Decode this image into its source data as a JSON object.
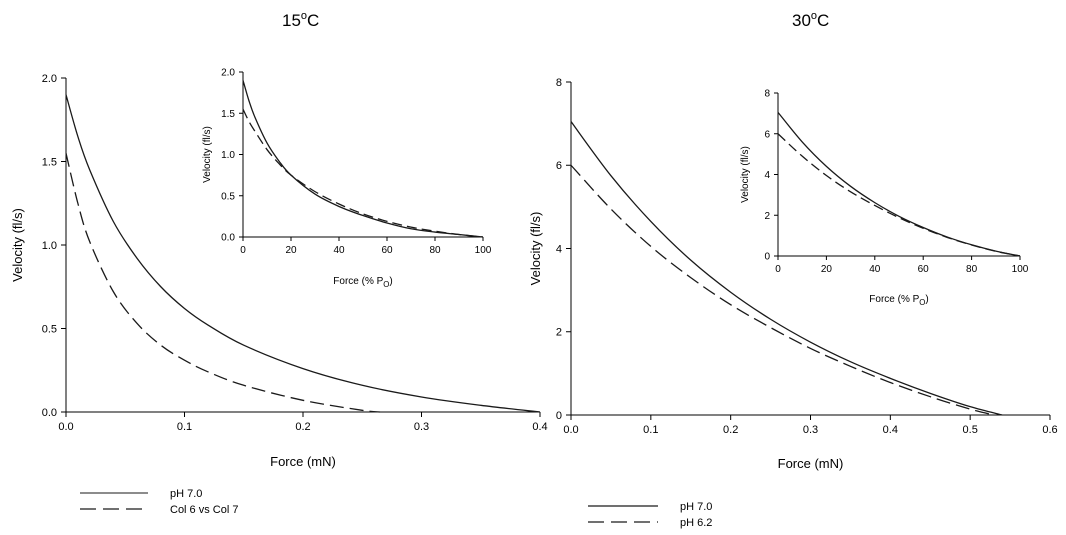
{
  "figure": {
    "panels": [
      {
        "title": "15°C",
        "title_main": "15",
        "title_sup": "o",
        "title_tail": "C",
        "legend": [
          "pH 7.0",
          "Col 6 vs Col 7"
        ]
      },
      {
        "title": "30°C",
        "title_main": "30",
        "title_sup": "o",
        "title_tail": "C",
        "legend": [
          "pH 7.0",
          "pH 6.2"
        ]
      }
    ],
    "colors": {
      "solid": "#1a1a1a",
      "dashed": "#1a1a1a",
      "legend_solid_left": "#8c8c8c"
    }
  },
  "chart_data": [
    {
      "type": "line",
      "title": "15°C",
      "xlabel": "Force (mN)",
      "ylabel": "Velocity (fl/s)",
      "xlim": [
        0,
        0.4
      ],
      "ylim": [
        0,
        2.0
      ],
      "xticks": [
        0.0,
        0.1,
        0.2,
        0.3,
        0.4
      ],
      "xtick_labels": [
        "0.0",
        "0.1",
        "0.2",
        "0.3",
        "0.4"
      ],
      "yticks": [
        0.0,
        0.5,
        1.0,
        1.5,
        2.0
      ],
      "ytick_labels": [
        "0.0",
        "0.5",
        "1.0",
        "1.5",
        "2.0"
      ],
      "grid": false,
      "legend": "bottom",
      "series": [
        {
          "name": "pH 7.0",
          "style": "solid",
          "x": [
            0,
            0.01,
            0.02,
            0.04,
            0.06,
            0.08,
            0.1,
            0.12,
            0.15,
            0.2,
            0.25,
            0.3,
            0.35,
            0.4
          ],
          "y": [
            1.9,
            1.65,
            1.45,
            1.14,
            0.92,
            0.75,
            0.62,
            0.52,
            0.4,
            0.26,
            0.16,
            0.09,
            0.04,
            0.0
          ]
        },
        {
          "name": "Col 6 vs Col 7",
          "style": "dashed",
          "x": [
            0,
            0.01,
            0.02,
            0.04,
            0.06,
            0.08,
            0.1,
            0.12,
            0.15,
            0.2,
            0.25,
            0.265
          ],
          "y": [
            1.55,
            1.25,
            1.02,
            0.72,
            0.53,
            0.4,
            0.31,
            0.24,
            0.16,
            0.07,
            0.01,
            0.0
          ]
        }
      ]
    },
    {
      "type": "line",
      "title": "",
      "xlabel": "Force (% P",
      "xlabel_sub": "O",
      "xlabel_tail": ")",
      "ylabel": "Velocity (fl/s)",
      "xlim": [
        0,
        100
      ],
      "ylim": [
        0,
        2.0
      ],
      "xticks": [
        0,
        20,
        40,
        60,
        80,
        100
      ],
      "xtick_labels": [
        "0",
        "20",
        "40",
        "60",
        "80",
        "100"
      ],
      "yticks": [
        0.0,
        0.5,
        1.0,
        1.5,
        2.0
      ],
      "ytick_labels": [
        "0.0",
        "0.5",
        "1.0",
        "1.5",
        "2.0"
      ],
      "grid": false,
      "series": [
        {
          "name": "pH 7.0",
          "style": "solid",
          "x": [
            0,
            2.5,
            5,
            10,
            15,
            20,
            30,
            40,
            50,
            60,
            70,
            80,
            90,
            100
          ],
          "y": [
            1.9,
            1.65,
            1.45,
            1.14,
            0.92,
            0.75,
            0.52,
            0.37,
            0.26,
            0.17,
            0.1,
            0.06,
            0.03,
            0.0
          ]
        },
        {
          "name": "Col 6 vs Col 7",
          "style": "dashed",
          "x": [
            0,
            2.5,
            5,
            10,
            15,
            20,
            30,
            40,
            50,
            60,
            70,
            80,
            90,
            100
          ],
          "y": [
            1.55,
            1.4,
            1.28,
            1.06,
            0.89,
            0.75,
            0.55,
            0.4,
            0.28,
            0.19,
            0.12,
            0.07,
            0.03,
            0.0
          ]
        }
      ]
    },
    {
      "type": "line",
      "title": "30°C",
      "xlabel": "Force (mN)",
      "ylabel": "Velocity (fl/s)",
      "xlim": [
        0,
        0.6
      ],
      "ylim": [
        0,
        8
      ],
      "xticks": [
        0.0,
        0.1,
        0.2,
        0.3,
        0.4,
        0.5,
        0.6
      ],
      "xtick_labels": [
        "0.0",
        "0.1",
        "0.2",
        "0.3",
        "0.4",
        "0.5",
        "0.6"
      ],
      "yticks": [
        0,
        2,
        4,
        6,
        8
      ],
      "ytick_labels": [
        "0",
        "2",
        "4",
        "6",
        "8"
      ],
      "grid": false,
      "legend": "bottom",
      "series": [
        {
          "name": "pH 7.0",
          "style": "solid",
          "x": [
            0,
            0.05,
            0.1,
            0.15,
            0.2,
            0.25,
            0.3,
            0.35,
            0.4,
            0.45,
            0.5,
            0.54
          ],
          "y": [
            7.05,
            5.75,
            4.65,
            3.72,
            2.95,
            2.3,
            1.75,
            1.28,
            0.88,
            0.52,
            0.2,
            0.0
          ]
        },
        {
          "name": "pH 6.2",
          "style": "dashed",
          "x": [
            0,
            0.05,
            0.1,
            0.15,
            0.2,
            0.25,
            0.3,
            0.35,
            0.4,
            0.45,
            0.5,
            0.53
          ],
          "y": [
            6.0,
            4.95,
            4.05,
            3.3,
            2.65,
            2.1,
            1.6,
            1.17,
            0.78,
            0.44,
            0.14,
            0.0
          ]
        }
      ]
    },
    {
      "type": "line",
      "title": "",
      "xlabel": "Force (% P",
      "xlabel_sub": "O",
      "xlabel_tail": ")",
      "ylabel": "Velocity (fl/s)",
      "xlim": [
        0,
        100
      ],
      "ylim": [
        0,
        8
      ],
      "xticks": [
        0,
        20,
        40,
        60,
        80,
        100
      ],
      "xtick_labels": [
        "0",
        "20",
        "40",
        "60",
        "80",
        "100"
      ],
      "yticks": [
        0,
        2,
        4,
        6,
        8
      ],
      "ytick_labels": [
        "0",
        "2",
        "4",
        "6",
        "8"
      ],
      "grid": false,
      "series": [
        {
          "name": "pH 7.0",
          "style": "solid",
          "x": [
            0,
            10,
            20,
            30,
            40,
            50,
            60,
            70,
            80,
            90,
            100
          ],
          "y": [
            7.05,
            5.6,
            4.4,
            3.42,
            2.62,
            1.95,
            1.4,
            0.93,
            0.55,
            0.24,
            0.0
          ]
        },
        {
          "name": "pH 6.2",
          "style": "dashed",
          "x": [
            0,
            10,
            20,
            30,
            40,
            50,
            60,
            70,
            80,
            90,
            100
          ],
          "y": [
            6.0,
            4.9,
            3.95,
            3.15,
            2.48,
            1.88,
            1.36,
            0.91,
            0.54,
            0.23,
            0.0
          ]
        }
      ]
    }
  ]
}
